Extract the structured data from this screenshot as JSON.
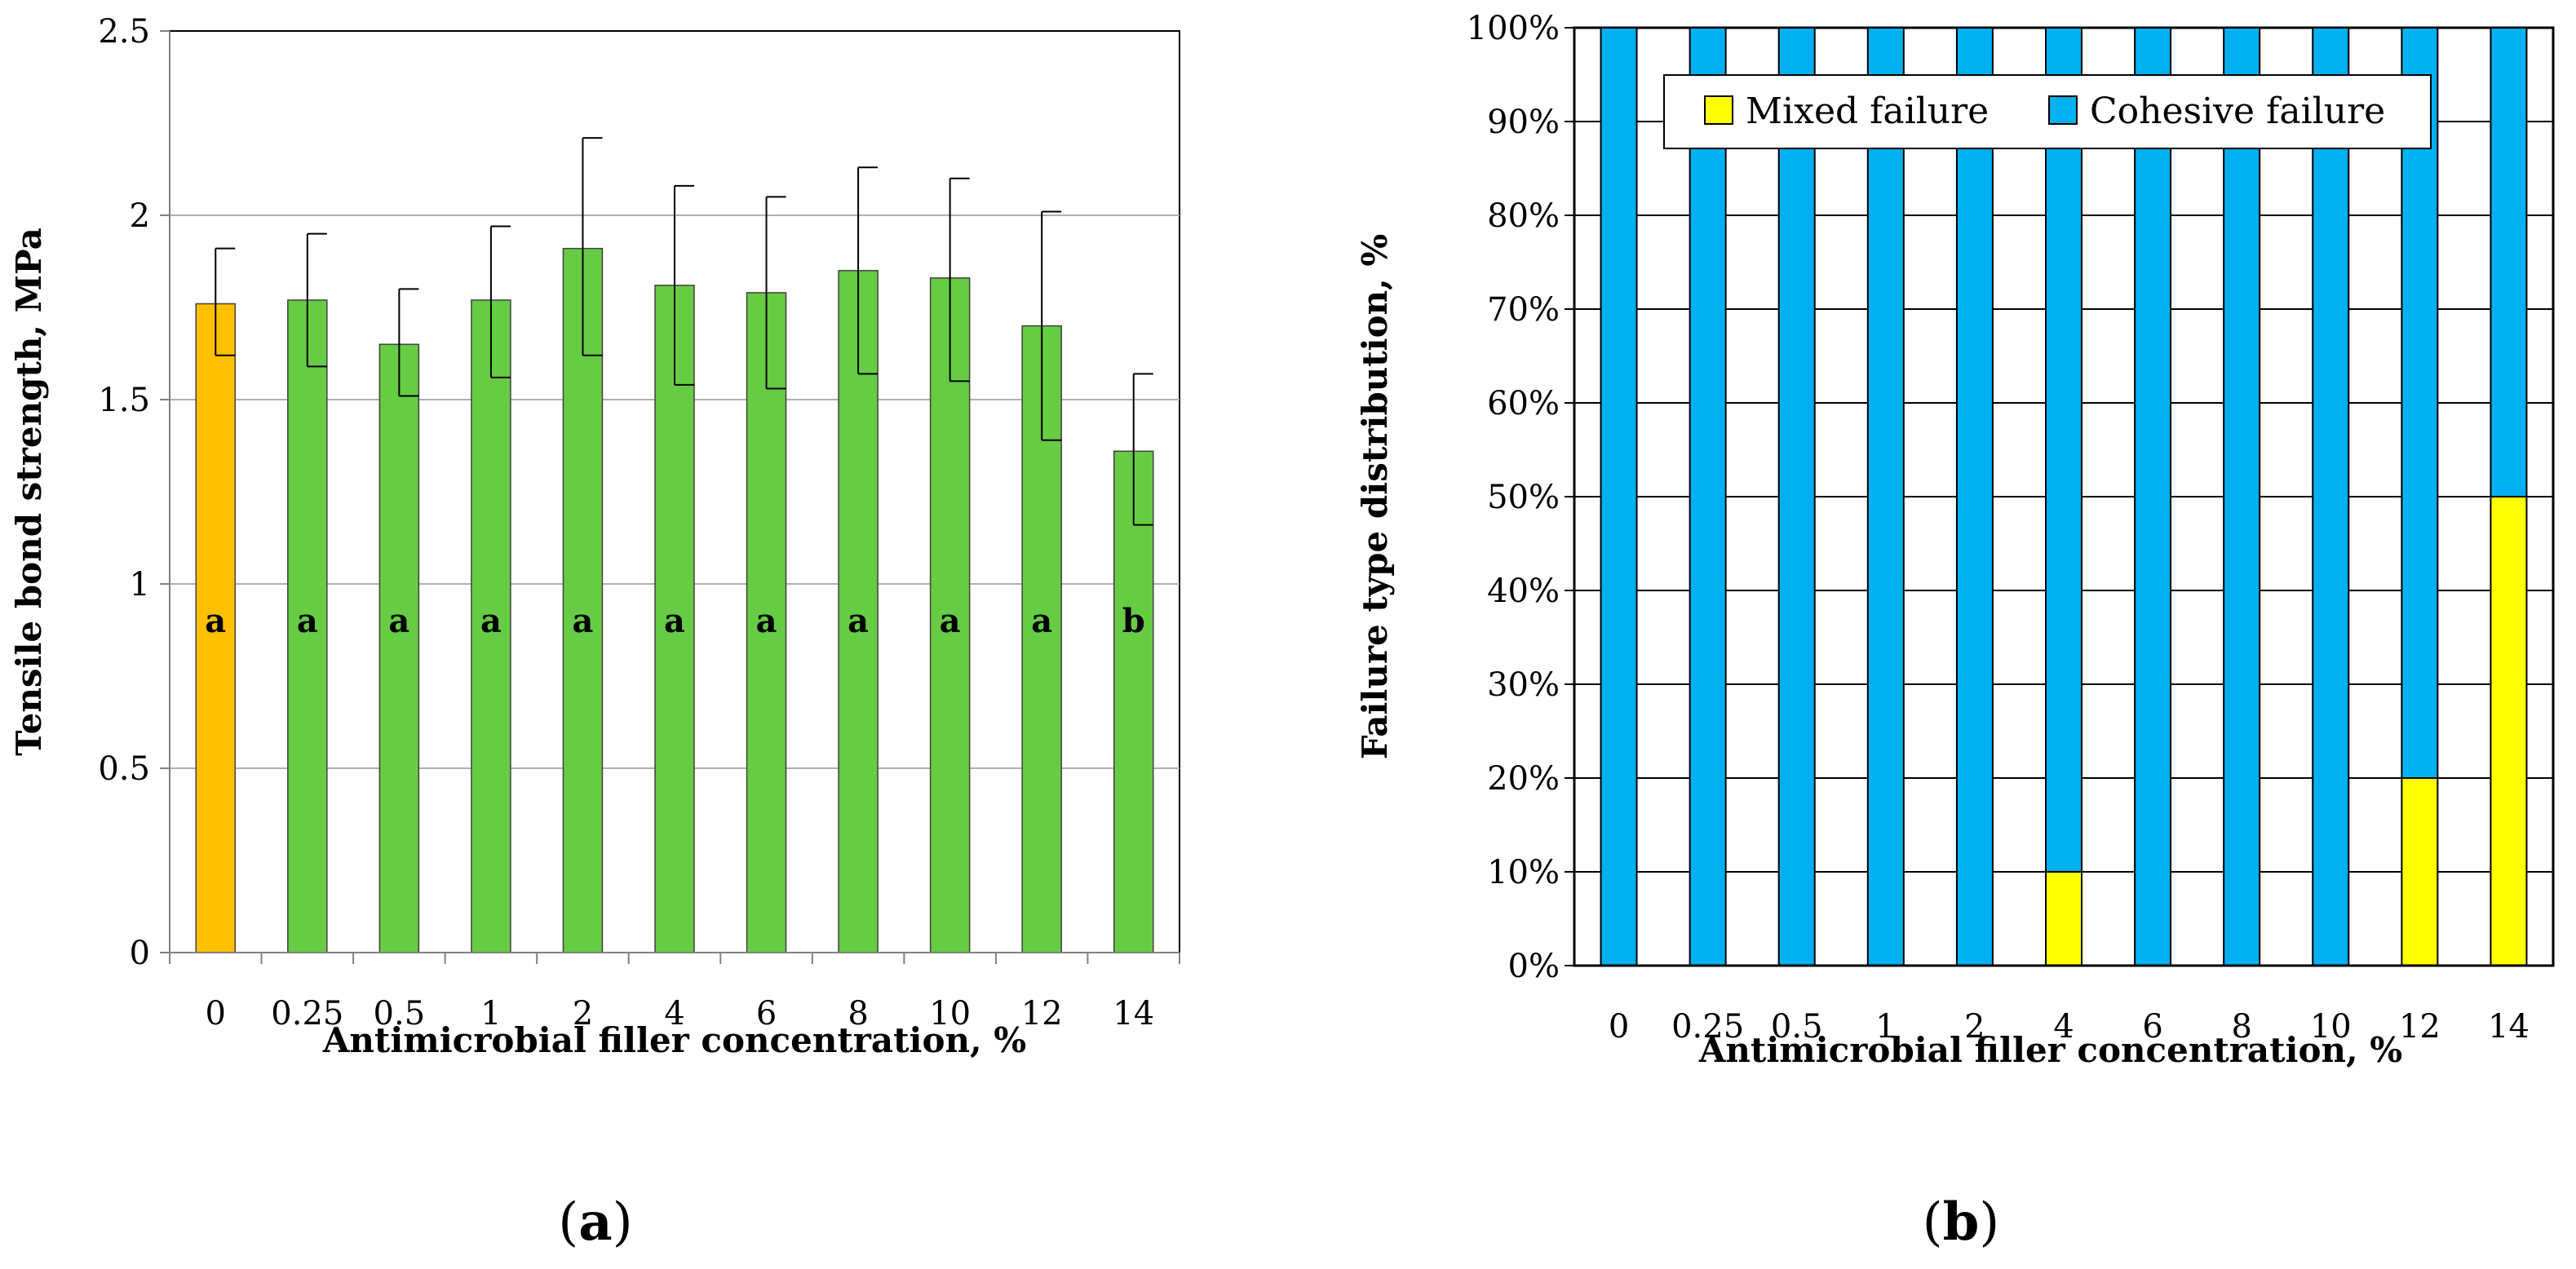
{
  "chart_data": [
    {
      "id": "a",
      "type": "bar",
      "title": "",
      "xlabel": "Antimicrobial filler concentration, %",
      "ylabel": "Tensile bond strength, MPa",
      "ylim": [
        0,
        2.5
      ],
      "yticks": [
        "0",
        "0.5",
        "1",
        "1.5",
        "2",
        "2.5"
      ],
      "ytick_values": [
        0,
        0.5,
        1,
        1.5,
        2,
        2.5
      ],
      "categories": [
        "0",
        "0.25",
        "0.5",
        "1",
        "2",
        "4",
        "6",
        "8",
        "10",
        "12",
        "14"
      ],
      "values": [
        1.76,
        1.77,
        1.65,
        1.77,
        1.91,
        1.81,
        1.79,
        1.85,
        1.83,
        1.7,
        1.36
      ],
      "error_plus": [
        0.15,
        0.18,
        0.15,
        0.2,
        0.3,
        0.27,
        0.26,
        0.28,
        0.27,
        0.31,
        0.21
      ],
      "error_minus": [
        0.14,
        0.18,
        0.14,
        0.21,
        0.29,
        0.27,
        0.26,
        0.28,
        0.28,
        0.31,
        0.2
      ],
      "significance_letters": [
        "a",
        "a",
        "a",
        "a",
        "a",
        "a",
        "a",
        "a",
        "a",
        "a",
        "b"
      ],
      "colors": [
        "#ffc000",
        "#66cc44",
        "#66cc44",
        "#66cc44",
        "#66cc44",
        "#66cc44",
        "#66cc44",
        "#66cc44",
        "#66cc44",
        "#66cc44",
        "#66cc44"
      ],
      "grid": true,
      "panel_label_open": "(",
      "panel_label_letter": "a",
      "panel_label_close": ")"
    },
    {
      "id": "b",
      "type": "bar",
      "title": "",
      "xlabel": "Antimicrobial filler concentration, %",
      "ylabel": "Failure type distribution, %",
      "ylim": [
        0,
        100
      ],
      "yticks": [
        "0%",
        "10%",
        "20%",
        "30%",
        "40%",
        "50%",
        "60%",
        "70%",
        "80%",
        "90%",
        "100%"
      ],
      "ytick_values": [
        0,
        10,
        20,
        30,
        40,
        50,
        60,
        70,
        80,
        90,
        100
      ],
      "categories": [
        "0",
        "0.25",
        "0.5",
        "1",
        "2",
        "4",
        "6",
        "8",
        "10",
        "12",
        "14"
      ],
      "series": [
        {
          "name": "Mixed failure",
          "color": "#ffff00",
          "values": [
            0,
            0,
            0,
            0,
            0,
            10,
            0,
            0,
            0,
            20,
            50
          ]
        },
        {
          "name": "Cohesive failure",
          "color": "#00b0f0",
          "values": [
            100,
            100,
            100,
            100,
            100,
            90,
            100,
            100,
            100,
            80,
            50
          ]
        }
      ],
      "stacked": true,
      "grid": true,
      "legend": "top",
      "panel_label_open": "(",
      "panel_label_letter": "b",
      "panel_label_close": ")"
    }
  ]
}
